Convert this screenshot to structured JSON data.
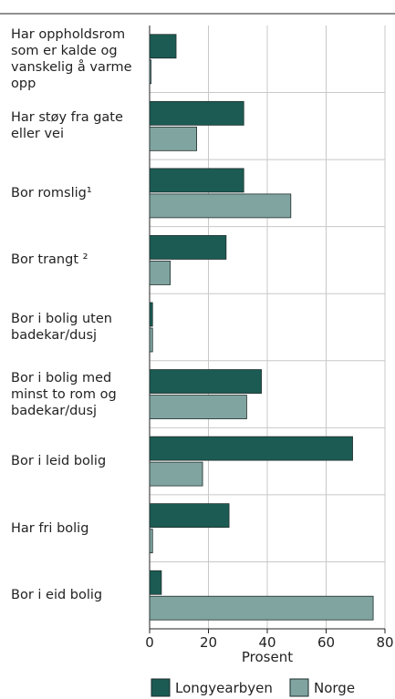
{
  "chart_data": {
    "type": "hbar",
    "categories": [
      "Har oppholdsrom som er kalde og vanskelig å varme opp",
      "Har støy fra gate eller vei",
      "Bor romslig¹",
      "Bor trangt ²",
      "Bor i bolig uten badekar/dusj",
      "Bor i bolig med minst to rom og badekar/dusj",
      "Bor i leid bolig",
      "Har fri bolig",
      "Bor i eid bolig"
    ],
    "series": [
      {
        "name": "Longyearbyen",
        "color": "#1b5b53",
        "values": [
          9,
          32,
          32,
          26,
          1,
          38,
          69,
          27,
          4
        ]
      },
      {
        "name": "Norge",
        "color": "#80a4a0",
        "values": [
          0.5,
          16,
          48,
          7,
          1,
          33,
          18,
          1,
          76
        ]
      }
    ],
    "xlabel": "Prosent",
    "xlim": [
      0,
      80
    ],
    "xticks": [
      0,
      20,
      40,
      60,
      80
    ],
    "grid": true
  }
}
